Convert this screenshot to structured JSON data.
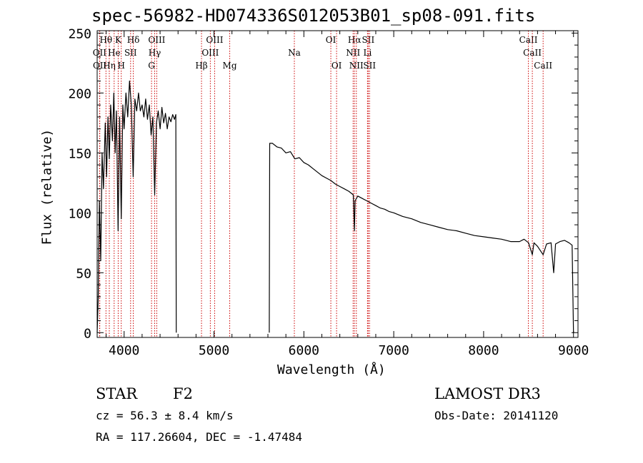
{
  "chart_data": {
    "type": "line",
    "title": "spec-56982-HD074336S012053B01_sp08-091.fits",
    "xlabel": "Wavelength (Å)",
    "ylabel": "Flux (relative)",
    "xlim": [
      3700,
      9050
    ],
    "ylim": [
      -4,
      252
    ],
    "xticks": [
      4000,
      5000,
      6000,
      7000,
      8000,
      9000
    ],
    "yticks": [
      0,
      50,
      100,
      150,
      200,
      250
    ],
    "series": [
      {
        "name": "flux",
        "segments": [
          [
            [
              3700,
              0
            ],
            [
              3712,
              30
            ],
            [
              3725,
              110
            ],
            [
              3740,
              60
            ],
            [
              3755,
              150
            ],
            [
              3770,
              120
            ],
            [
              3790,
              175
            ],
            [
              3805,
              130
            ],
            [
              3820,
              180
            ],
            [
              3835,
              145
            ],
            [
              3850,
              190
            ],
            [
              3870,
              160
            ],
            [
              3885,
              200
            ],
            [
              3900,
              150
            ],
            [
              3915,
              185
            ],
            [
              3933,
              85
            ],
            [
              3950,
              180
            ],
            [
              3968,
              95
            ],
            [
              3985,
              190
            ],
            [
              4000,
              170
            ],
            [
              4020,
              200
            ],
            [
              4040,
              180
            ],
            [
              4060,
              210
            ],
            [
              4080,
              190
            ],
            [
              4101,
              130
            ],
            [
              4120,
              195
            ],
            [
              4140,
              185
            ],
            [
              4160,
              200
            ],
            [
              4180,
              185
            ],
            [
              4200,
              190
            ],
            [
              4220,
              180
            ],
            [
              4240,
              195
            ],
            [
              4260,
              178
            ],
            [
              4280,
              190
            ],
            [
              4300,
              165
            ],
            [
              4320,
              180
            ],
            [
              4340,
              115
            ],
            [
              4360,
              175
            ],
            [
              4380,
              185
            ],
            [
              4400,
              170
            ],
            [
              4420,
              188
            ],
            [
              4440,
              175
            ],
            [
              4460,
              183
            ],
            [
              4480,
              170
            ],
            [
              4500,
              180
            ],
            [
              4520,
              176
            ],
            [
              4540,
              182
            ],
            [
              4560,
              178
            ],
            [
              4575,
              182
            ],
            [
              4580,
              0
            ]
          ],
          [
            [
              5615,
              0
            ],
            [
              5620,
              158
            ],
            [
              5650,
              158
            ],
            [
              5700,
              155
            ],
            [
              5750,
              154
            ],
            [
              5800,
              150
            ],
            [
              5850,
              151
            ],
            [
              5900,
              145
            ],
            [
              5950,
              146
            ],
            [
              6000,
              142
            ],
            [
              6050,
              140
            ],
            [
              6100,
              137
            ],
            [
              6150,
              134
            ],
            [
              6200,
              131
            ],
            [
              6250,
              129
            ],
            [
              6300,
              127
            ],
            [
              6350,
              124
            ],
            [
              6400,
              122
            ],
            [
              6450,
              120
            ],
            [
              6500,
              118
            ],
            [
              6550,
              115
            ],
            [
              6563,
              85
            ],
            [
              6570,
              110
            ],
            [
              6600,
              114
            ],
            [
              6650,
              112
            ],
            [
              6700,
              110
            ],
            [
              6750,
              108
            ],
            [
              6800,
              106
            ],
            [
              6850,
              104
            ],
            [
              6900,
              103
            ],
            [
              6950,
              101
            ],
            [
              7000,
              100
            ],
            [
              7100,
              97
            ],
            [
              7200,
              95
            ],
            [
              7300,
              92
            ],
            [
              7400,
              90
            ],
            [
              7500,
              88
            ],
            [
              7600,
              86
            ],
            [
              7700,
              85
            ],
            [
              7800,
              83
            ],
            [
              7900,
              81
            ],
            [
              8000,
              80
            ],
            [
              8100,
              79
            ],
            [
              8200,
              78
            ],
            [
              8300,
              76
            ],
            [
              8400,
              76
            ],
            [
              8450,
              78
            ],
            [
              8500,
              75
            ],
            [
              8542,
              65
            ],
            [
              8560,
              75
            ],
            [
              8600,
              72
            ],
            [
              8662,
              65
            ],
            [
              8700,
              74
            ],
            [
              8750,
              75
            ],
            [
              8780,
              50
            ],
            [
              8800,
              74
            ],
            [
              8850,
              76
            ],
            [
              8900,
              77
            ],
            [
              8950,
              75
            ],
            [
              8985,
              73
            ],
            [
              9000,
              0
            ]
          ]
        ]
      }
    ],
    "lines": [
      {
        "label": "OII",
        "x": 3727,
        "row": 2
      },
      {
        "label": "OII",
        "x": 3729,
        "row": 3
      },
      {
        "label": "Hθ",
        "x": 3798,
        "row": 1
      },
      {
        "label": "Hη",
        "x": 3835,
        "row": 3
      },
      {
        "label": "He",
        "x": 3889,
        "row": 2
      },
      {
        "label": "K",
        "x": 3934,
        "row": 1
      },
      {
        "label": "H",
        "x": 3968,
        "row": 3
      },
      {
        "label": "SII",
        "x": 4072,
        "row": 2
      },
      {
        "label": "Hδ",
        "x": 4102,
        "row": 1
      },
      {
        "label": "OIII",
        "x": 4363,
        "row": 1
      },
      {
        "label": "Hγ",
        "x": 4340,
        "row": 2
      },
      {
        "label": "G",
        "x": 4305,
        "row": 3
      },
      {
        "label": "Hβ",
        "x": 4861,
        "row": 3
      },
      {
        "label": "OIII",
        "x": 5007,
        "row": 1
      },
      {
        "label": "OIII",
        "x": 4959,
        "row": 2
      },
      {
        "label": "Mg",
        "x": 5175,
        "row": 3
      },
      {
        "label": "Na",
        "x": 5894,
        "row": 2
      },
      {
        "label": "OI",
        "x": 6300,
        "row": 1
      },
      {
        "label": "OI",
        "x": 6364,
        "row": 3
      },
      {
        "label": "Hα",
        "x": 6563,
        "row": 1
      },
      {
        "label": "NII",
        "x": 6548,
        "row": 2
      },
      {
        "label": "NII",
        "x": 6584,
        "row": 3
      },
      {
        "label": "SII",
        "x": 6716,
        "row": 1
      },
      {
        "label": "Li",
        "x": 6708,
        "row": 2
      },
      {
        "label": "SII",
        "x": 6731,
        "row": 3
      },
      {
        "label": "CaII",
        "x": 8498,
        "row": 1
      },
      {
        "label": "CaII",
        "x": 8542,
        "row": 2
      },
      {
        "label": "CaII",
        "x": 8662,
        "row": 3
      }
    ]
  },
  "info": {
    "class": "STAR",
    "subclass": "F2",
    "survey": "LAMOST DR3",
    "cz": "cz = 56.3 ± 8.4 km/s",
    "obs_date": "Obs-Date: 20141120",
    "radec": "RA = 117.26604, DEC =  -1.47484"
  },
  "colors": {
    "line": "#000000",
    "marker": "#cc0000"
  }
}
